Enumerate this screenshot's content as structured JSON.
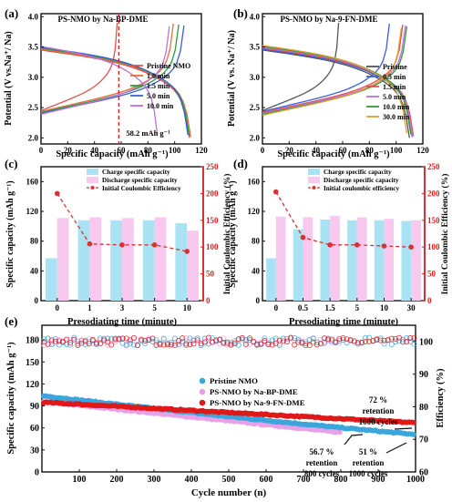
{
  "colors": {
    "black": "#111111",
    "charge_bar": "#a9e2f3",
    "discharge_bar": "#f7c9ef",
    "ice_line": "#d93030",
    "red_dash": "#e11a1a",
    "e_blue": "#3aa6dc",
    "e_pink": "#e8a0e8",
    "e_red": "#e01818"
  },
  "chart_data": [
    {
      "id": "a",
      "type": "line",
      "panel_label": "(a)",
      "title": "PS-NMO by Na-BP-DME",
      "xlabel": "Specific capacity (mAh g⁻¹)",
      "ylabel": "Potential (V vs.Na⁺/ Na)",
      "xlim": [
        0,
        120
      ],
      "ylim": [
        1.9,
        4.05
      ],
      "xticks": [
        "0",
        "20",
        "40",
        "60",
        "80",
        "100",
        "120"
      ],
      "yticks": [
        "2.0",
        "2.5",
        "3.0",
        "3.5",
        "4.0"
      ],
      "legend_position": "center-right",
      "annotation": {
        "text": "58.2 mAh g⁻¹",
        "x": 58.2
      },
      "series": [
        {
          "name": "Pristine NMO",
          "color": "#e05050",
          "charge_cap": 57,
          "discharge_cap": 111
        },
        {
          "name": "1.0 min",
          "color": "#e8703a",
          "charge_cap": 99,
          "discharge_cap": 112
        },
        {
          "name": "1.5 min",
          "color": "#2a9e3a",
          "charge_cap": 103,
          "discharge_cap": 111
        },
        {
          "name": "5.0 min",
          "color": "#3a5fd8",
          "charge_cap": 107,
          "discharge_cap": 110
        },
        {
          "name": "10.0 min",
          "color": "#c070d8",
          "charge_cap": 96,
          "discharge_cap": 87
        }
      ]
    },
    {
      "id": "b",
      "type": "line",
      "panel_label": "(b)",
      "title": "PS-NMO by Na-9-FN-DME",
      "xlabel": "Specific capacity (mAh g⁻¹)",
      "ylabel": "Potential (V vs. Na⁺/ Na)",
      "xlim": [
        0,
        120
      ],
      "ylim": [
        1.9,
        4.05
      ],
      "xticks": [
        "0",
        "20",
        "40",
        "60",
        "80",
        "100",
        "120"
      ],
      "yticks": [
        "2.0",
        "2.5",
        "3.0",
        "3.5",
        "4.0"
      ],
      "legend_position": "right",
      "series": [
        {
          "name": "Pristine",
          "color": "#555555",
          "charge_cap": 57,
          "discharge_cap": 110
        },
        {
          "name": "0.5 min",
          "color": "#3a5fd8",
          "charge_cap": 95,
          "discharge_cap": 112
        },
        {
          "name": "1.5 min",
          "color": "#e05050",
          "charge_cap": 105,
          "discharge_cap": 113
        },
        {
          "name": "5.0 min",
          "color": "#c070d8",
          "charge_cap": 107,
          "discharge_cap": 112
        },
        {
          "name": "10.0 min",
          "color": "#2a9e3a",
          "charge_cap": 108,
          "discharge_cap": 111
        },
        {
          "name": "30.0 min",
          "color": "#e0a030",
          "charge_cap": 104,
          "discharge_cap": 108
        }
      ]
    },
    {
      "id": "c",
      "type": "bar",
      "panel_label": "(c)",
      "xlabel": "Presodiating time (minute)",
      "ylabel": "Specific capacity (mAh g⁻¹)",
      "y2label": "Initial Coulombic Efficiency (%)",
      "categories": [
        "0",
        "1",
        "3",
        "5",
        "10"
      ],
      "ylim": [
        0,
        180
      ],
      "yticks": [
        "0",
        "40",
        "80",
        "120",
        "160"
      ],
      "y2lim": [
        0,
        250
      ],
      "y2ticks": [
        "0",
        "50",
        "100",
        "150",
        "200",
        "250"
      ],
      "legend_position": "top",
      "series": [
        {
          "name": "Charge specific capacity",
          "values": [
            57,
            108,
            108,
            108,
            104
          ]
        },
        {
          "name": "Discharge specific capacity",
          "values": [
            111,
            112,
            111,
            112,
            94
          ]
        },
        {
          "name": "Initial Coulombic Efficiency",
          "values": [
            200,
            106,
            104,
            104,
            92
          ]
        }
      ]
    },
    {
      "id": "d",
      "type": "bar",
      "panel_label": "(d)",
      "xlabel": "Presodiating time (minute)",
      "ylabel": "Specific capacity (mAh g⁻¹)",
      "y2label": "Initial Coulombic Efficiency (%)",
      "categories": [
        "0",
        "0.5",
        "1.5",
        "5",
        "10",
        "30"
      ],
      "ylim": [
        0,
        180
      ],
      "yticks": [
        "0",
        "40",
        "80",
        "120",
        "160"
      ],
      "y2lim": [
        0,
        250
      ],
      "y2ticks": [
        "0",
        "50",
        "100",
        "150",
        "200",
        "250"
      ],
      "legend_position": "top",
      "series": [
        {
          "name": "Charge specific capacity",
          "values": [
            57,
            96,
            109,
            108,
            108,
            107
          ]
        },
        {
          "name": "Discharge specific capacity",
          "values": [
            113,
            112,
            114,
            112,
            110,
            108
          ]
        },
        {
          "name": "Initial coulombic efficiency",
          "values": [
            203,
            118,
            104,
            104,
            102,
            100
          ]
        }
      ]
    },
    {
      "id": "e",
      "type": "scatter",
      "panel_label": "(e)",
      "xlabel": "Cycle number (n)",
      "ylabel": "Specific capacity (mAh g⁻¹)",
      "y2label": "Efficiency (%)",
      "xlim": [
        0,
        1000
      ],
      "xticks": [
        "100",
        "200",
        "300",
        "400",
        "500",
        "600",
        "700",
        "800",
        "900",
        "1000"
      ],
      "ylim": [
        0,
        200
      ],
      "yticks": [
        "0",
        "30",
        "60",
        "90",
        "120",
        "150",
        "180"
      ],
      "y2lim": [
        60,
        105
      ],
      "y2ticks": [
        "60",
        "70",
        "80",
        "90",
        "100"
      ],
      "legend_position": "center-left",
      "series": [
        {
          "name": "Pristine NMO",
          "color": "#3aa6dc",
          "cycles": 1000,
          "start": 104,
          "end": 51
        },
        {
          "name": "PS-NMO by Na-BP-DME",
          "color": "#e8a0e8",
          "cycles": 800,
          "start": 96,
          "end": 54
        },
        {
          "name": "PS-NMO by Na-9-FN-DME",
          "color": "#e01818",
          "cycles": 1000,
          "start": 95,
          "end": 67
        }
      ],
      "efficiency_level": 100,
      "annotations": [
        {
          "pct": "72 %",
          "word": "retention",
          "cycles": "1000 cycles"
        },
        {
          "pct": "56.7 %",
          "word": "retention",
          "cycles": "800 cycles"
        },
        {
          "pct": "51 %",
          "word": "retention",
          "cycles": "1000 cycles"
        }
      ]
    }
  ]
}
